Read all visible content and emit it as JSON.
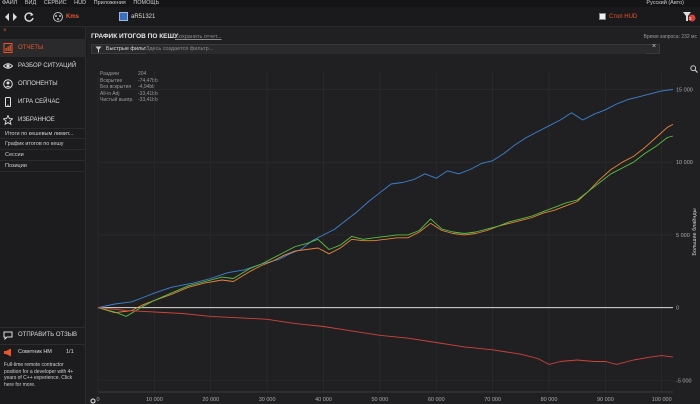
{
  "menu": {
    "items": [
      "ФАЙЛ",
      "ВИД",
      "СЕРВИС",
      "HUD",
      "Приложения",
      "ПОМОЩЬ"
    ],
    "language": "Русский (Авто)"
  },
  "toolbar": {
    "site": "Kms",
    "player": "aR51321",
    "hud_stop": "Стоп HUD",
    "badge": "2"
  },
  "sidebar": {
    "nav": [
      {
        "label": "ОТЧЕТЫ",
        "icon": "reports-icon",
        "active": true
      },
      {
        "label": "РАЗБОР СИТУАЦИЙ",
        "icon": "eye-icon"
      },
      {
        "label": "ОППОНЕНТЫ",
        "icon": "opponents-icon"
      },
      {
        "label": "ИГРА СЕЙЧАС",
        "icon": "phone-icon"
      },
      {
        "label": "ИЗБРАННОЕ",
        "icon": "star-icon"
      }
    ],
    "subitems": [
      "Итоги по кешевым лимит...",
      "График итогов по кешу",
      "Сессии",
      "Позиции"
    ],
    "feedback": "ОТПРАВИТЬ ОТЗЫВ",
    "advisor": {
      "label": "Советник НМ",
      "count": "1/1"
    },
    "ad_text": [
      "Full-time remote contractor",
      "position for a developer with 4+",
      "years of C++ experience. Click",
      "here for more."
    ]
  },
  "main": {
    "title": "ГРАФИК ИТОГОВ ПО КЕШУ",
    "save_report": "Сохранить отчет...",
    "request_time": "Время запроса: 232 мс",
    "quick_filters": "Быстрые фильтры",
    "filter_placeholder": "Здесь создается фильтр..."
  },
  "stats": [
    {
      "label": "Раздачи",
      "value": "204"
    },
    {
      "label": "Вскрытие",
      "value": "-74,47bb"
    },
    {
      "label": "Без вскрытия",
      "value": "-4,94bb"
    },
    {
      "label": "All-in Adj",
      "value": "-33,41bb"
    },
    {
      "label": "Чистый выигр.",
      "value": "-33,41bb"
    }
  ],
  "colors": {
    "accent": "#e8562a",
    "blue": "#3c82d2",
    "orange": "#e8843a",
    "green": "#58c040",
    "red": "#d0423a",
    "zero": "#dcdcdc"
  },
  "chart_data": {
    "type": "line",
    "xlabel": "Раздачи",
    "ylabel": "Большие блайнды",
    "xlim": [
      0,
      102000
    ],
    "ylim": [
      -5800,
      16200
    ],
    "xticks": [
      0,
      10000,
      20000,
      30000,
      40000,
      50000,
      60000,
      70000,
      80000,
      90000,
      100000
    ],
    "xtick_labels": [
      "0",
      "10 000",
      "20 000",
      "30 000",
      "40 000",
      "50 000",
      "60 000",
      "70 000",
      "80 000",
      "90 000",
      "100 000"
    ],
    "yticks": [
      15000,
      10000,
      5000,
      0,
      -5000
    ],
    "ytick_labels": [
      "15 000",
      "10 000",
      "5 000",
      "0",
      "-5 000"
    ],
    "series": [
      {
        "color": "#3c82d2",
        "points": [
          [
            0,
            0
          ],
          [
            3000,
            250
          ],
          [
            6000,
            400
          ],
          [
            8000,
            700
          ],
          [
            10000,
            1000
          ],
          [
            13000,
            1400
          ],
          [
            17000,
            1700
          ],
          [
            20000,
            2000
          ],
          [
            23000,
            2400
          ],
          [
            26000,
            2600
          ],
          [
            29000,
            3000
          ],
          [
            32000,
            3300
          ],
          [
            34000,
            3700
          ],
          [
            36000,
            4000
          ],
          [
            38000,
            4600
          ],
          [
            40000,
            5000
          ],
          [
            42000,
            5400
          ],
          [
            44000,
            6000
          ],
          [
            46000,
            6600
          ],
          [
            48000,
            7300
          ],
          [
            50000,
            7900
          ],
          [
            52000,
            8500
          ],
          [
            54000,
            8600
          ],
          [
            56000,
            8800
          ],
          [
            58000,
            9200
          ],
          [
            60000,
            8900
          ],
          [
            62000,
            9400
          ],
          [
            64000,
            9200
          ],
          [
            66000,
            9500
          ],
          [
            68000,
            9900
          ],
          [
            70000,
            10100
          ],
          [
            72000,
            10600
          ],
          [
            74000,
            11200
          ],
          [
            76000,
            11700
          ],
          [
            78000,
            12100
          ],
          [
            80000,
            12500
          ],
          [
            82000,
            12900
          ],
          [
            84000,
            13400
          ],
          [
            86000,
            12900
          ],
          [
            88000,
            13300
          ],
          [
            90000,
            13600
          ],
          [
            92000,
            14000
          ],
          [
            94000,
            14300
          ],
          [
            96000,
            14500
          ],
          [
            98000,
            14700
          ],
          [
            100000,
            14900
          ],
          [
            102000,
            15000
          ]
        ]
      },
      {
        "color": "#e8843a",
        "points": [
          [
            0,
            0
          ],
          [
            3000,
            -350
          ],
          [
            6000,
            -200
          ],
          [
            8000,
            200
          ],
          [
            10000,
            500
          ],
          [
            13000,
            900
          ],
          [
            16000,
            1400
          ],
          [
            19000,
            1700
          ],
          [
            22000,
            1900
          ],
          [
            24000,
            1800
          ],
          [
            27000,
            2500
          ],
          [
            29000,
            2900
          ],
          [
            31000,
            3200
          ],
          [
            33000,
            3600
          ],
          [
            35000,
            3900
          ],
          [
            37000,
            4000
          ],
          [
            39000,
            4100
          ],
          [
            41000,
            3700
          ],
          [
            43000,
            4100
          ],
          [
            45000,
            4700
          ],
          [
            47000,
            4600
          ],
          [
            49000,
            4600
          ],
          [
            51000,
            4700
          ],
          [
            53000,
            4800
          ],
          [
            55000,
            4800
          ],
          [
            57000,
            5200
          ],
          [
            59000,
            5800
          ],
          [
            61000,
            5300
          ],
          [
            63000,
            5100
          ],
          [
            65000,
            5000
          ],
          [
            67000,
            5100
          ],
          [
            69000,
            5300
          ],
          [
            71000,
            5600
          ],
          [
            73000,
            5800
          ],
          [
            75000,
            6000
          ],
          [
            77000,
            6200
          ],
          [
            79000,
            6500
          ],
          [
            81000,
            6700
          ],
          [
            83000,
            7000
          ],
          [
            85000,
            7300
          ],
          [
            87000,
            8000
          ],
          [
            89000,
            8800
          ],
          [
            91000,
            9500
          ],
          [
            93000,
            10000
          ],
          [
            95000,
            10400
          ],
          [
            97000,
            11000
          ],
          [
            99000,
            11700
          ],
          [
            101000,
            12400
          ],
          [
            102000,
            12600
          ]
        ]
      },
      {
        "color": "#58c040",
        "points": [
          [
            0,
            0
          ],
          [
            3000,
            -300
          ],
          [
            5000,
            -600
          ],
          [
            8000,
            100
          ],
          [
            10000,
            500
          ],
          [
            13000,
            1000
          ],
          [
            16000,
            1500
          ],
          [
            19000,
            1800
          ],
          [
            22000,
            2100
          ],
          [
            24000,
            2000
          ],
          [
            27000,
            2700
          ],
          [
            29000,
            3000
          ],
          [
            31000,
            3400
          ],
          [
            33000,
            3800
          ],
          [
            35000,
            4200
          ],
          [
            37000,
            4400
          ],
          [
            39000,
            4700
          ],
          [
            41000,
            4000
          ],
          [
            43000,
            4300
          ],
          [
            45000,
            4900
          ],
          [
            47000,
            4700
          ],
          [
            49000,
            4800
          ],
          [
            51000,
            4900
          ],
          [
            53000,
            5000
          ],
          [
            55000,
            5000
          ],
          [
            57000,
            5300
          ],
          [
            59000,
            6100
          ],
          [
            61000,
            5400
          ],
          [
            63000,
            5200
          ],
          [
            65000,
            5100
          ],
          [
            67000,
            5200
          ],
          [
            69000,
            5400
          ],
          [
            71000,
            5600
          ],
          [
            73000,
            5900
          ],
          [
            75000,
            6100
          ],
          [
            77000,
            6300
          ],
          [
            79000,
            6600
          ],
          [
            81000,
            6900
          ],
          [
            83000,
            7200
          ],
          [
            85000,
            7400
          ],
          [
            87000,
            8000
          ],
          [
            89000,
            8600
          ],
          [
            91000,
            9200
          ],
          [
            93000,
            9600
          ],
          [
            95000,
            10000
          ],
          [
            97000,
            10600
          ],
          [
            99000,
            11100
          ],
          [
            101000,
            11700
          ],
          [
            102000,
            11800
          ]
        ]
      },
      {
        "color": "#d0423a",
        "points": [
          [
            0,
            0
          ],
          [
            5000,
            -200
          ],
          [
            10000,
            -300
          ],
          [
            15000,
            -400
          ],
          [
            20000,
            -600
          ],
          [
            25000,
            -700
          ],
          [
            30000,
            -800
          ],
          [
            35000,
            -1100
          ],
          [
            40000,
            -1300
          ],
          [
            45000,
            -1600
          ],
          [
            50000,
            -1900
          ],
          [
            55000,
            -2100
          ],
          [
            60000,
            -2400
          ],
          [
            65000,
            -2700
          ],
          [
            70000,
            -2900
          ],
          [
            75000,
            -3200
          ],
          [
            78000,
            -3500
          ],
          [
            80000,
            -3900
          ],
          [
            82000,
            -3700
          ],
          [
            85000,
            -3600
          ],
          [
            88000,
            -3700
          ],
          [
            90000,
            -3700
          ],
          [
            92000,
            -3900
          ],
          [
            95000,
            -3600
          ],
          [
            98000,
            -3400
          ],
          [
            100000,
            -3300
          ],
          [
            102000,
            -3400
          ]
        ]
      }
    ]
  }
}
